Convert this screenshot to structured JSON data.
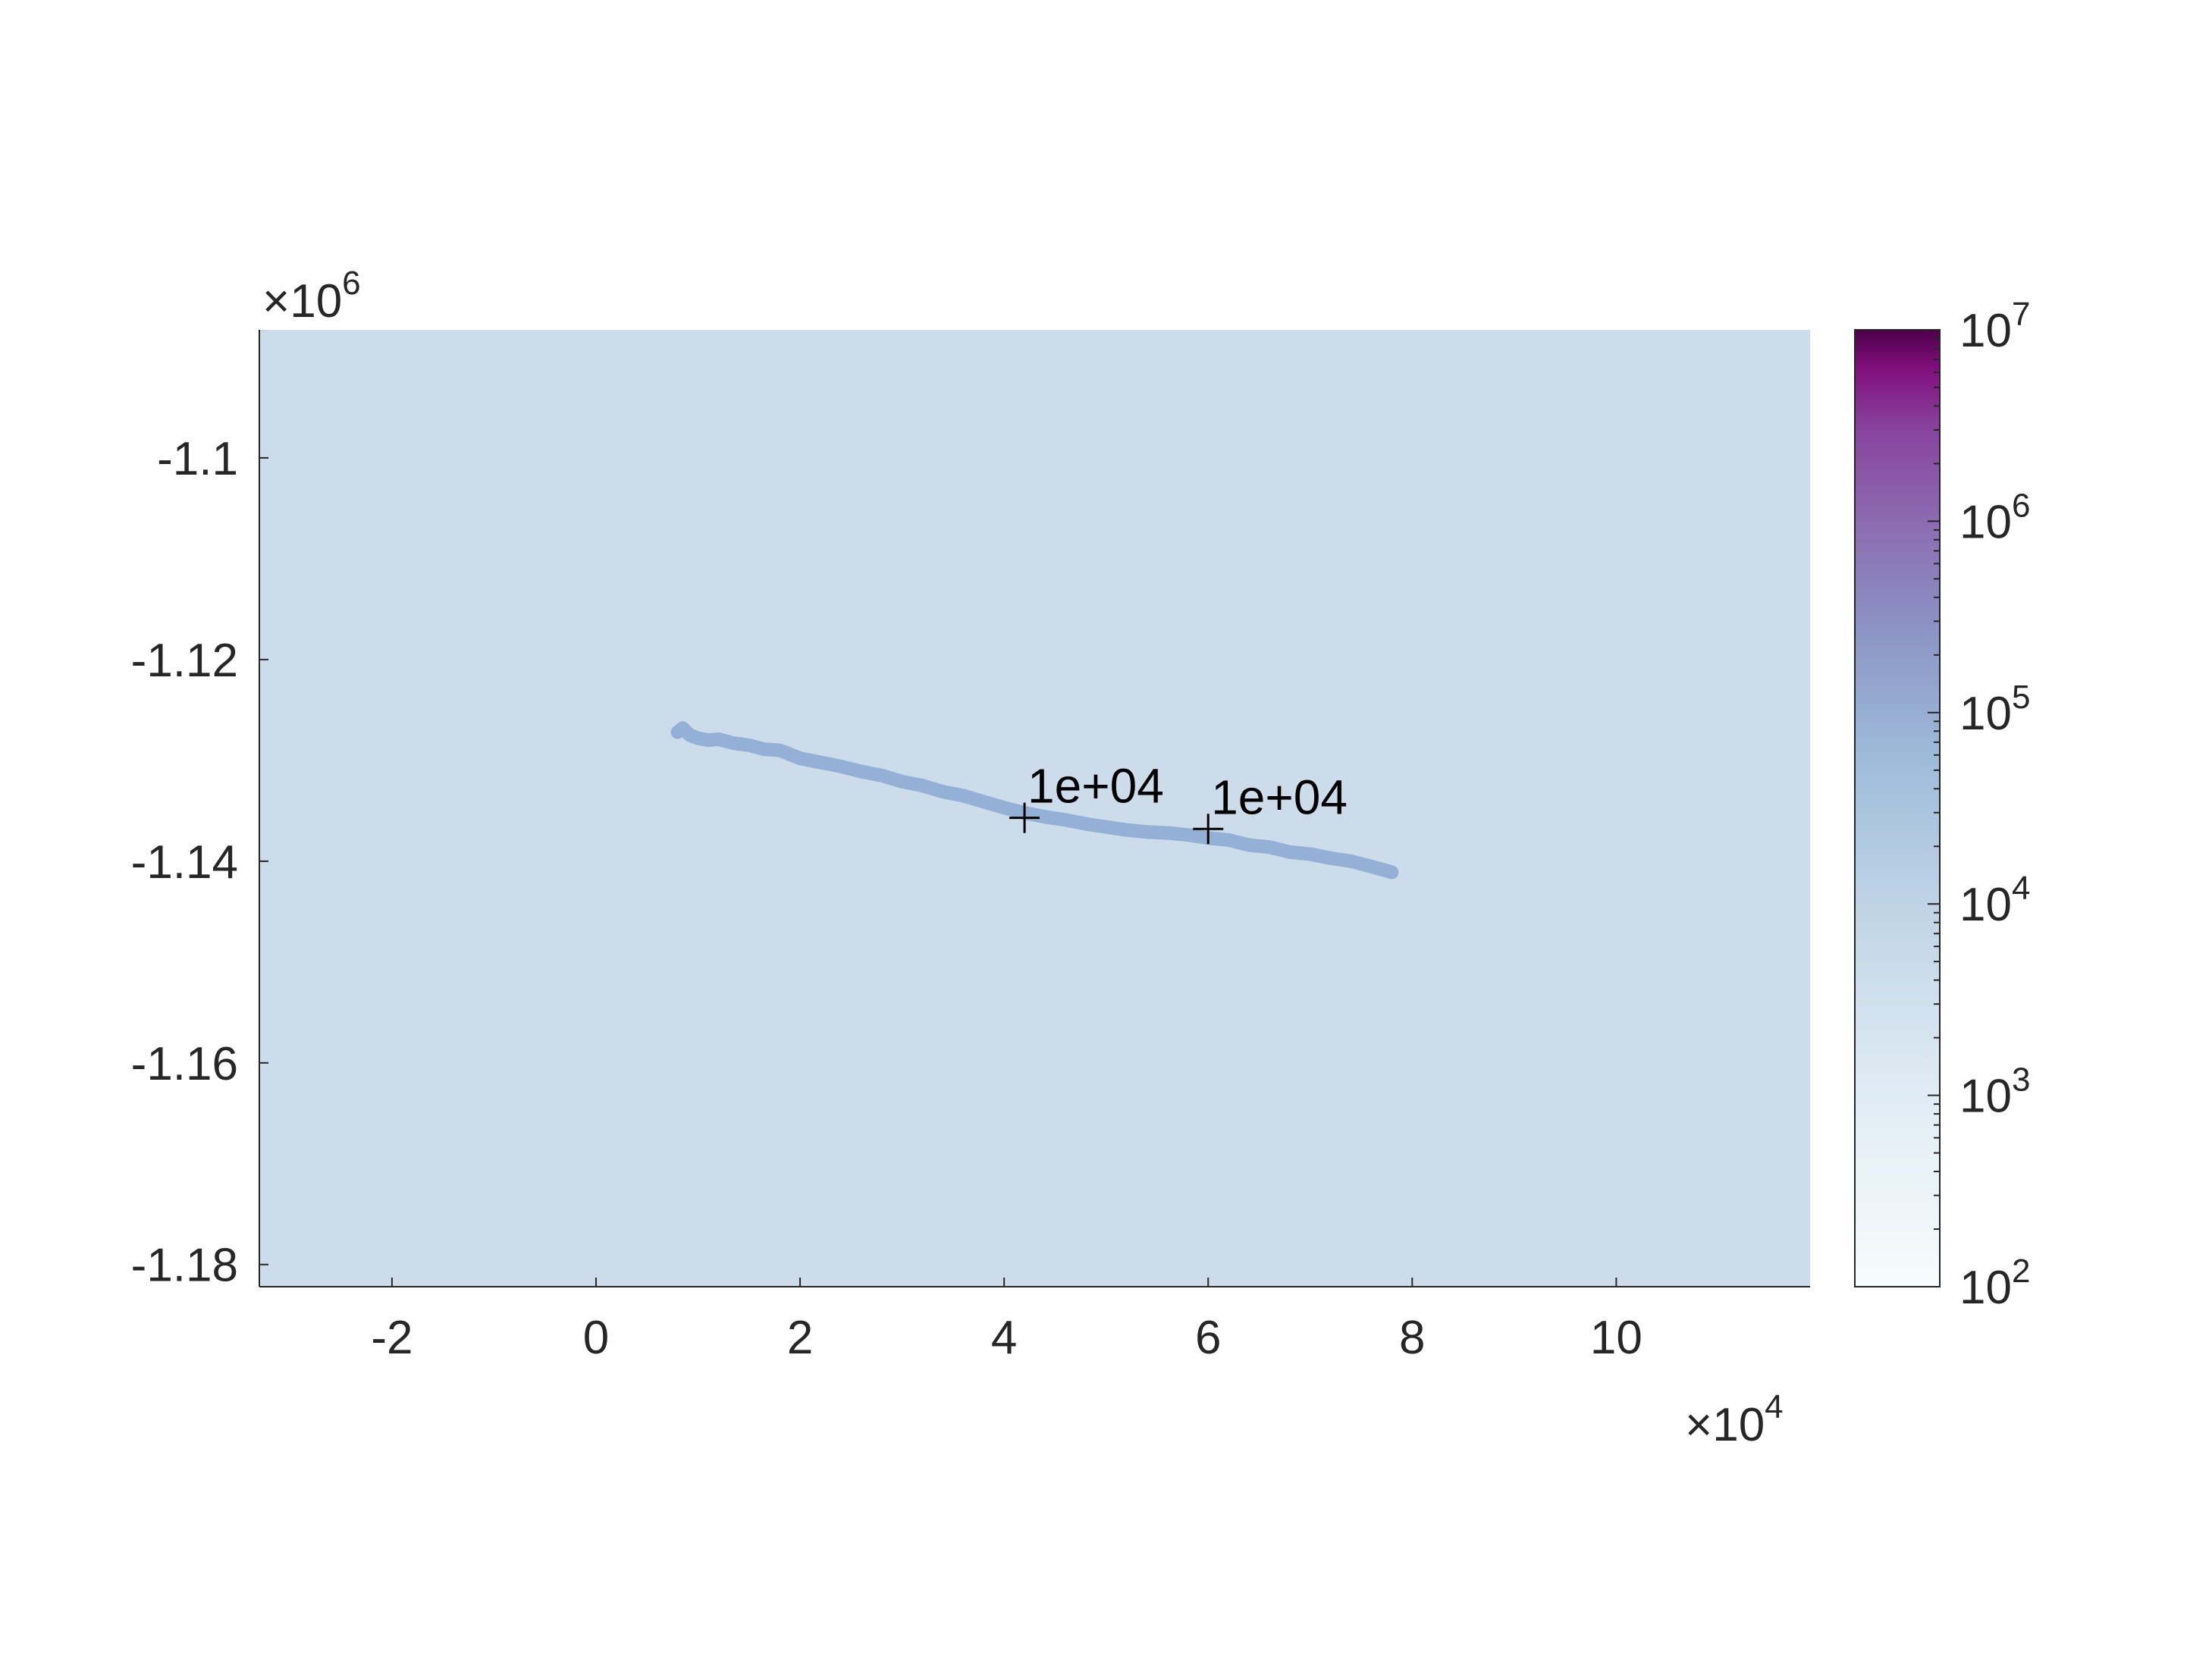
{
  "chart_data": {
    "type": "heatmap",
    "title": "",
    "xlabel": "",
    "ylabel": "",
    "x_multiplier": "×10",
    "x_multiplier_exponent": "4",
    "y_multiplier": "×10",
    "y_multiplier_exponent": "6",
    "x_unit_scale": 10000,
    "y_unit_scale": 1000000,
    "xlim": [
      -3.3,
      11.9
    ],
    "ylim": [
      -1.1822,
      -1.0873
    ],
    "xticks": [
      -2,
      0,
      2,
      4,
      6,
      8,
      10
    ],
    "xtick_labels": [
      "-2",
      "0",
      "2",
      "4",
      "6",
      "8",
      "10"
    ],
    "yticks": [
      -1.18,
      -1.16,
      -1.14,
      -1.12,
      -1.1
    ],
    "ytick_labels": [
      "-1.18",
      "-1.16",
      "-1.14",
      "-1.12",
      "-1.1"
    ],
    "grid": false,
    "background_value_color": "#ccdcea",
    "track_color": "#94b0d6",
    "track": {
      "x": [
        0.8,
        0.85,
        0.92,
        1.0,
        1.1,
        1.2,
        1.35,
        1.5,
        1.65,
        1.8,
        2.0,
        2.2,
        2.4,
        2.6,
        2.8,
        3.0,
        3.2,
        3.4,
        3.6,
        3.8,
        4.0,
        4.2,
        4.4,
        4.6,
        4.8,
        5.0,
        5.2,
        5.4,
        5.6,
        5.8,
        6.0,
        6.2,
        6.4,
        6.6,
        6.8,
        7.0,
        7.2,
        7.4,
        7.55,
        7.7,
        7.8
      ],
      "y": [
        -1.1272,
        -1.1268,
        -1.1275,
        -1.1278,
        -1.128,
        -1.1279,
        -1.1283,
        -1.1285,
        -1.1289,
        -1.129,
        -1.1298,
        -1.1302,
        -1.1306,
        -1.1311,
        -1.1315,
        -1.1321,
        -1.1325,
        -1.1331,
        -1.1335,
        -1.1341,
        -1.1347,
        -1.1352,
        -1.1356,
        -1.1359,
        -1.1363,
        -1.1366,
        -1.1369,
        -1.1371,
        -1.1372,
        -1.1374,
        -1.1377,
        -1.1379,
        -1.1384,
        -1.1386,
        -1.1391,
        -1.1393,
        -1.1397,
        -1.14,
        -1.1404,
        -1.1408,
        -1.1411
      ]
    },
    "markers": [
      {
        "x": 4.2,
        "y": -1.1357,
        "symbol": "+",
        "label": "1e+04"
      },
      {
        "x": 6.0,
        "y": -1.1368,
        "symbol": "+",
        "label": "1e+04"
      }
    ],
    "colorbar": {
      "scale": "log",
      "range": [
        100,
        10000000
      ],
      "ticks": [
        2,
        3,
        4,
        5,
        6,
        7
      ],
      "tick_label_base": "10",
      "tick_label_exponents": [
        "2",
        "3",
        "4",
        "5",
        "6",
        "7"
      ],
      "colormap_stops": [
        {
          "pos": 0.0,
          "color": "#f7fcfd"
        },
        {
          "pos": 0.2,
          "color": "#e0ecf4"
        },
        {
          "pos": 0.4,
          "color": "#bfd3e6"
        },
        {
          "pos": 0.55,
          "color": "#9ebcda"
        },
        {
          "pos": 0.68,
          "color": "#8c96c6"
        },
        {
          "pos": 0.8,
          "color": "#8c6bb1"
        },
        {
          "pos": 0.9,
          "color": "#88419d"
        },
        {
          "pos": 0.96,
          "color": "#810f7c"
        },
        {
          "pos": 1.0,
          "color": "#4d004b"
        }
      ]
    }
  }
}
